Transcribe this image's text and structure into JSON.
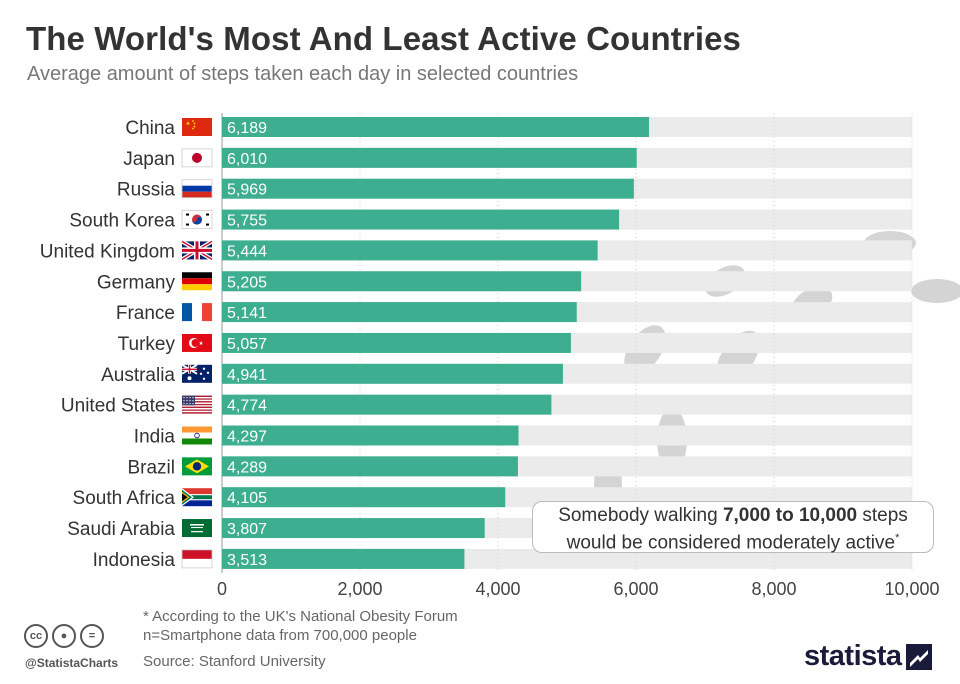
{
  "header": {
    "title": "The World's Most And Least Active Countries",
    "subtitle": "Average amount of steps taken each day in selected countries"
  },
  "chart_data": {
    "type": "bar",
    "orientation": "horizontal",
    "title": "The World's Most And Least Active Countries",
    "subtitle": "Average amount of steps taken each day in selected countries",
    "categories": [
      "China",
      "Japan",
      "Russia",
      "South Korea",
      "United Kingdom",
      "Germany",
      "France",
      "Turkey",
      "Australia",
      "United States",
      "India",
      "Brazil",
      "South Africa",
      "Saudi Arabia",
      "Indonesia"
    ],
    "values": [
      6189,
      6010,
      5969,
      5755,
      5444,
      5205,
      5141,
      5057,
      4941,
      4774,
      4297,
      4289,
      4105,
      3807,
      3513
    ],
    "value_labels": [
      "6,189",
      "6,010",
      "5,969",
      "5,755",
      "5,444",
      "5,205",
      "5,141",
      "5,057",
      "4,941",
      "4,774",
      "4,297",
      "4,289",
      "4,105",
      "3,807",
      "3,513"
    ],
    "xlim": [
      0,
      10000
    ],
    "xticks": [
      0,
      2000,
      4000,
      6000,
      8000,
      10000
    ],
    "xtick_labels": [
      "0",
      "2,000",
      "4,000",
      "6,000",
      "8,000",
      "10,000"
    ],
    "xlabel": "",
    "ylabel": "",
    "bar_color": "#3dae90",
    "track_color": "#ebebeb",
    "grid": true
  },
  "note": {
    "prefix": "Somebody walking",
    "highlight": "7,000 to 10,000",
    "suffix": "steps",
    "line2": "would be considered moderately active",
    "marker": "*"
  },
  "footer": {
    "footnote": "* According to the UK's National Obesity Forum",
    "sample": "n=Smartphone data from 700,000 people",
    "source": "Source: Stanford University",
    "handle": "@StatistaCharts",
    "logo": "statista"
  }
}
